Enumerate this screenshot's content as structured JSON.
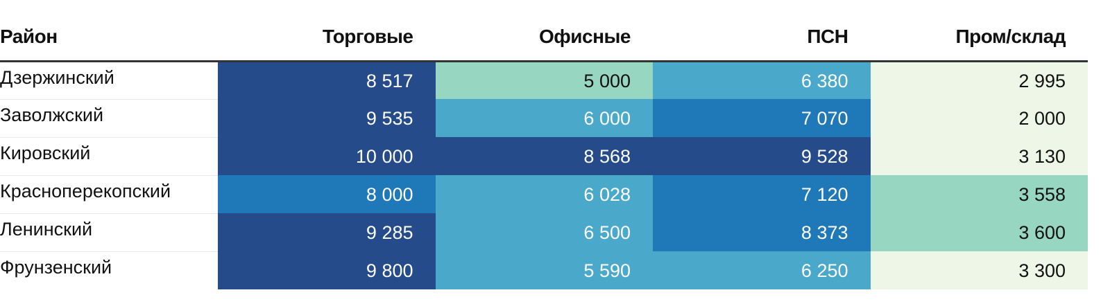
{
  "chart_data": {
    "type": "heatmap",
    "title": "",
    "row_header": "Район",
    "columns": [
      "Торговые",
      "Офисные",
      "ПСН",
      "Пром/склад"
    ],
    "rows": [
      {
        "name": "Дзержинский",
        "values": [
          8517,
          5000,
          6380,
          2995
        ],
        "labels": [
          "8 517",
          "5 000",
          "6 380",
          "2 995"
        ]
      },
      {
        "name": "Заволжский",
        "values": [
          9535,
          6000,
          7070,
          2000
        ],
        "labels": [
          "9 535",
          "6 000",
          "7 070",
          "2 000"
        ]
      },
      {
        "name": "Кировский",
        "values": [
          10000,
          8568,
          9528,
          3130
        ],
        "labels": [
          "10 000",
          "8 568",
          "9 528",
          "3 130"
        ]
      },
      {
        "name": "Красноперекопский",
        "values": [
          8000,
          6028,
          7120,
          3558
        ],
        "labels": [
          "8 000",
          "6 028",
          "7 120",
          "3 558"
        ]
      },
      {
        "name": "Ленинский",
        "values": [
          9285,
          6500,
          8373,
          3600
        ],
        "labels": [
          "9 285",
          "6 500",
          "8 373",
          "3 600"
        ]
      },
      {
        "name": "Фрунзенский",
        "values": [
          9800,
          5590,
          6250,
          3300
        ],
        "labels": [
          "9 800",
          "5 590",
          "6 250",
          "3 300"
        ]
      }
    ],
    "color_scale": [
      {
        "min": 0,
        "max": 3500,
        "bg": "#eef7e7",
        "fg": "#111111"
      },
      {
        "min": 3500,
        "max": 5500,
        "bg": "#97d6c0",
        "fg": "#111111"
      },
      {
        "min": 5500,
        "max": 7000,
        "bg": "#4aa9cb",
        "fg": "#ffffff"
      },
      {
        "min": 7000,
        "max": 8500,
        "bg": "#1f78b7",
        "fg": "#ffffff"
      },
      {
        "min": 8500,
        "max": 10001,
        "bg": "#254b8b",
        "fg": "#ffffff"
      }
    ]
  }
}
